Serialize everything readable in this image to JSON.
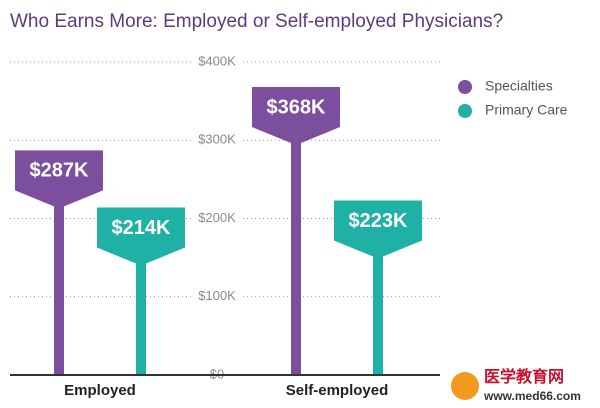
{
  "chart_data": {
    "type": "bar",
    "title": "Who Earns More: Employed or Self-employed Physicians?",
    "categories": [
      "Employed",
      "Self-employed"
    ],
    "series": [
      {
        "name": "Specialties",
        "color": "#7b4f9e",
        "values": [
          287000,
          368000
        ],
        "value_labels": [
          "$287K",
          "$368K"
        ]
      },
      {
        "name": "Primary Care",
        "color": "#1fb0a6",
        "values": [
          214000,
          223000
        ],
        "value_labels": [
          "$214K",
          "$223K"
        ]
      }
    ],
    "ylim": [
      0,
      400000
    ],
    "yticks": [
      {
        "value": 0,
        "label": "$0"
      },
      {
        "value": 100000,
        "label": "$100K"
      },
      {
        "value": 200000,
        "label": "$200K"
      },
      {
        "value": 300000,
        "label": "$300K"
      },
      {
        "value": 400000,
        "label": "$400K"
      }
    ],
    "grid": true,
    "legend": "top-right",
    "watermark": [
      "医学教育网",
      "www.med66.com"
    ]
  }
}
